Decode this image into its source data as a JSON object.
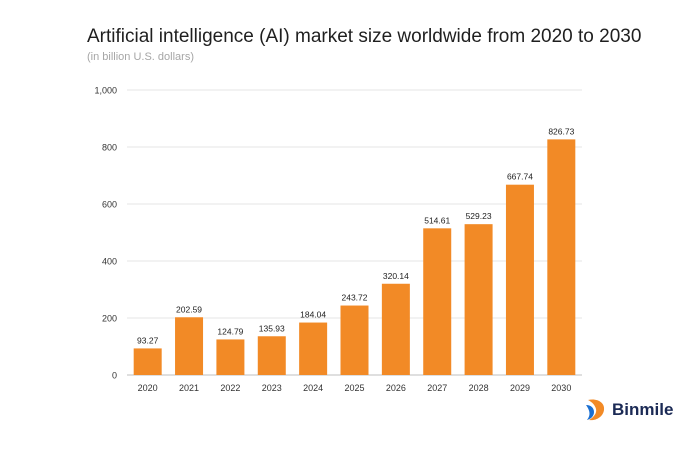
{
  "chart_data": {
    "type": "bar",
    "title": "Artificial intelligence (AI) market size worldwide from 2020 to 2030",
    "subtitle": "(in billion U.S. dollars)",
    "categories": [
      "2020",
      "2021",
      "2022",
      "2023",
      "2024",
      "2025",
      "2026",
      "2027",
      "2028",
      "2029",
      "2030"
    ],
    "values": [
      93.27,
      202.59,
      124.79,
      135.93,
      184.04,
      243.72,
      320.14,
      514.61,
      529.23,
      667.74,
      826.73
    ],
    "value_labels": [
      "93.27",
      "202.59",
      "124.79",
      "135.93",
      "184.04",
      "243.72",
      "320.14",
      "514.61",
      "529.23",
      "667.74",
      "826.73"
    ],
    "ylim": [
      0,
      1000
    ],
    "yticks": [
      0,
      200,
      400,
      600,
      800,
      1000
    ],
    "ytick_labels": [
      "0",
      "200",
      "400",
      "600",
      "800",
      "1,000"
    ],
    "xlabel": "",
    "ylabel": "",
    "grid": true,
    "bar_color": "#f28a26"
  },
  "brand": {
    "name": "Binmile",
    "logo_icon": "binmile-logo-icon"
  }
}
